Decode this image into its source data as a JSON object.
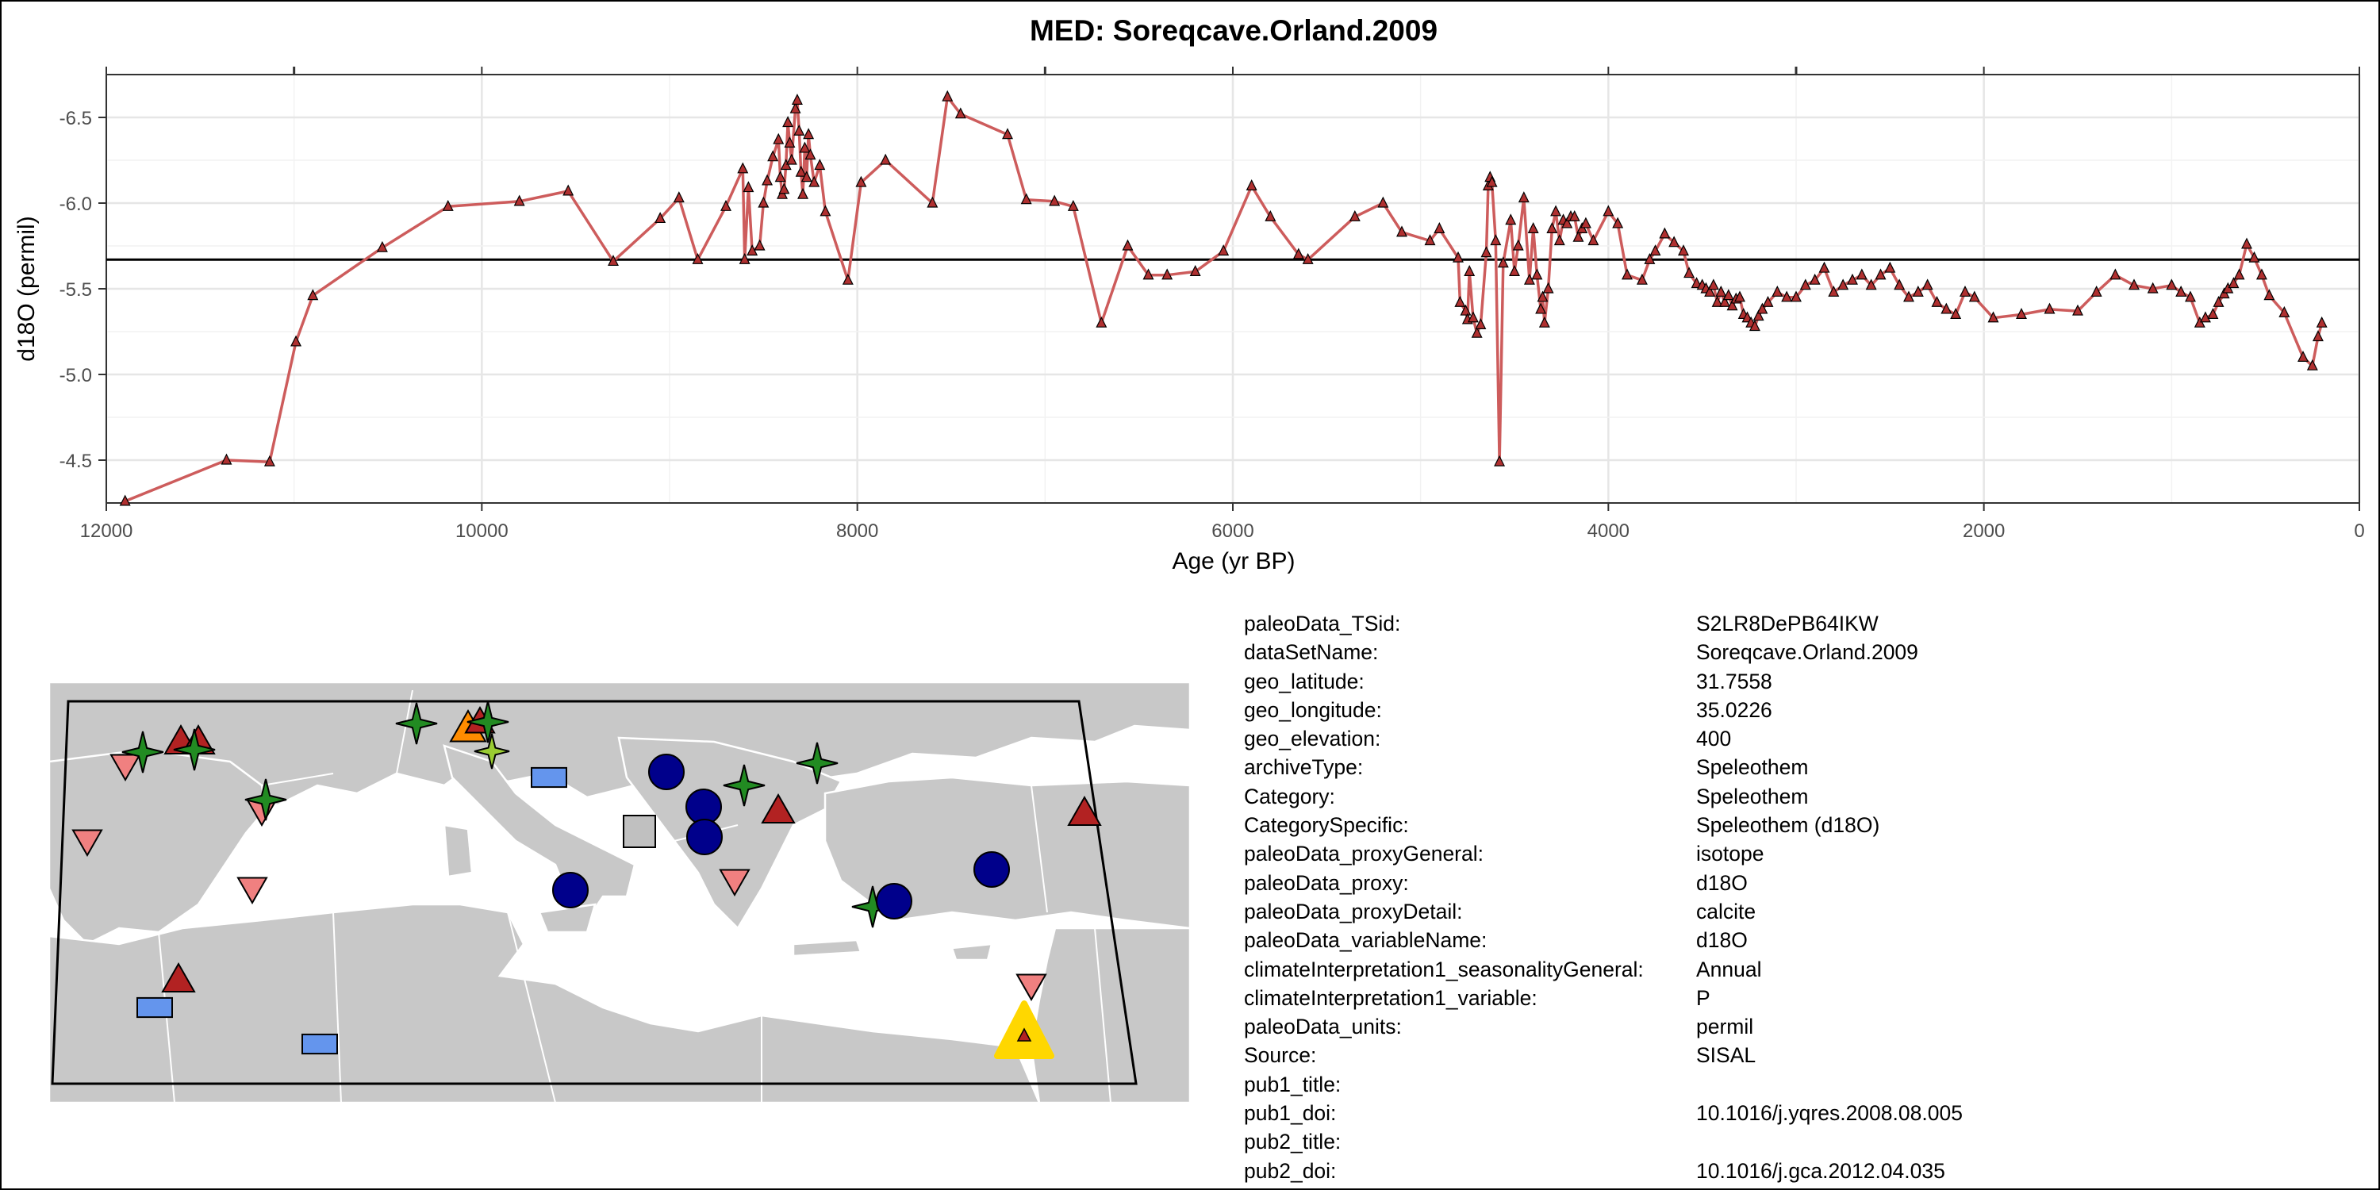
{
  "chart_data": {
    "type": "line",
    "title": "MED: Soreqcave.Orland.2009",
    "xlabel": "Age (yr BP)",
    "ylabel": "d18O (permil)",
    "x_reversed": true,
    "xlim": [
      12000,
      0
    ],
    "ylim_display": [
      -6.75,
      -4.25
    ],
    "y_reversed": true,
    "xticks": [
      12000,
      10000,
      8000,
      6000,
      4000,
      2000,
      0
    ],
    "yticks": [
      -6.5,
      -6.0,
      -5.5,
      -5.0,
      -4.5
    ],
    "xtick_labels": [
      "12000",
      "10000",
      "8000",
      "6000",
      "4000",
      "2000",
      "0"
    ],
    "ytick_labels": [
      "-6.5",
      "-6.0",
      "-5.5",
      "-5.0",
      "-4.5"
    ],
    "reference_line_y": -5.67,
    "line_color": "#cd5c5c",
    "marker_color": "#b03030",
    "grid": true,
    "points": [
      [
        11900,
        -4.26
      ],
      [
        11360,
        -4.5
      ],
      [
        11130,
        -4.49
      ],
      [
        10990,
        -5.19
      ],
      [
        10900,
        -5.46
      ],
      [
        10530,
        -5.74
      ],
      [
        10180,
        -5.98
      ],
      [
        9800,
        -6.01
      ],
      [
        9540,
        -6.07
      ],
      [
        9300,
        -5.66
      ],
      [
        9050,
        -5.91
      ],
      [
        8950,
        -6.03
      ],
      [
        8850,
        -5.67
      ],
      [
        8700,
        -5.98
      ],
      [
        8610,
        -6.2
      ],
      [
        8600,
        -5.67
      ],
      [
        8580,
        -6.09
      ],
      [
        8560,
        -5.72
      ],
      [
        8520,
        -5.75
      ],
      [
        8500,
        -6.0
      ],
      [
        8480,
        -6.13
      ],
      [
        8450,
        -6.27
      ],
      [
        8420,
        -6.37
      ],
      [
        8410,
        -6.15
      ],
      [
        8400,
        -6.05
      ],
      [
        8390,
        -6.08
      ],
      [
        8380,
        -6.22
      ],
      [
        8370,
        -6.47
      ],
      [
        8360,
        -6.35
      ],
      [
        8350,
        -6.25
      ],
      [
        8330,
        -6.55
      ],
      [
        8320,
        -6.6
      ],
      [
        8310,
        -6.42
      ],
      [
        8300,
        -6.18
      ],
      [
        8290,
        -6.05
      ],
      [
        8280,
        -6.32
      ],
      [
        8270,
        -6.15
      ],
      [
        8260,
        -6.4
      ],
      [
        8250,
        -6.28
      ],
      [
        8230,
        -6.12
      ],
      [
        8200,
        -6.22
      ],
      [
        8170,
        -5.95
      ],
      [
        8050,
        -5.55
      ],
      [
        7980,
        -6.12
      ],
      [
        7850,
        -6.25
      ],
      [
        7600,
        -6.0
      ],
      [
        7520,
        -6.62
      ],
      [
        7450,
        -6.52
      ],
      [
        7200,
        -6.4
      ],
      [
        7100,
        -6.02
      ],
      [
        6950,
        -6.01
      ],
      [
        6850,
        -5.98
      ],
      [
        6700,
        -5.3
      ],
      [
        6560,
        -5.75
      ],
      [
        6450,
        -5.58
      ],
      [
        6350,
        -5.58
      ],
      [
        6200,
        -5.6
      ],
      [
        6050,
        -5.72
      ],
      [
        5900,
        -6.1
      ],
      [
        5800,
        -5.92
      ],
      [
        5650,
        -5.7
      ],
      [
        5600,
        -5.67
      ],
      [
        5350,
        -5.92
      ],
      [
        5200,
        -6.0
      ],
      [
        5100,
        -5.83
      ],
      [
        4950,
        -5.78
      ],
      [
        4900,
        -5.85
      ],
      [
        4800,
        -5.68
      ],
      [
        4790,
        -5.42
      ],
      [
        4760,
        -5.37
      ],
      [
        4750,
        -5.32
      ],
      [
        4740,
        -5.6
      ],
      [
        4720,
        -5.33
      ],
      [
        4700,
        -5.24
      ],
      [
        4680,
        -5.29
      ],
      [
        4650,
        -5.71
      ],
      [
        4640,
        -6.1
      ],
      [
        4630,
        -6.15
      ],
      [
        4620,
        -6.12
      ],
      [
        4600,
        -5.78
      ],
      [
        4580,
        -4.49
      ],
      [
        4560,
        -5.65
      ],
      [
        4520,
        -5.9
      ],
      [
        4500,
        -5.6
      ],
      [
        4480,
        -5.75
      ],
      [
        4450,
        -6.03
      ],
      [
        4420,
        -5.55
      ],
      [
        4400,
        -5.85
      ],
      [
        4380,
        -5.58
      ],
      [
        4360,
        -5.38
      ],
      [
        4350,
        -5.45
      ],
      [
        4340,
        -5.3
      ],
      [
        4320,
        -5.5
      ],
      [
        4300,
        -5.85
      ],
      [
        4280,
        -5.95
      ],
      [
        4260,
        -5.78
      ],
      [
        4240,
        -5.9
      ],
      [
        4220,
        -5.88
      ],
      [
        4200,
        -5.92
      ],
      [
        4180,
        -5.92
      ],
      [
        4160,
        -5.8
      ],
      [
        4140,
        -5.85
      ],
      [
        4120,
        -5.88
      ],
      [
        4080,
        -5.78
      ],
      [
        4000,
        -5.95
      ],
      [
        3950,
        -5.88
      ],
      [
        3900,
        -5.58
      ],
      [
        3820,
        -5.55
      ],
      [
        3780,
        -5.67
      ],
      [
        3750,
        -5.72
      ],
      [
        3700,
        -5.82
      ],
      [
        3650,
        -5.77
      ],
      [
        3600,
        -5.72
      ],
      [
        3570,
        -5.59
      ],
      [
        3530,
        -5.53
      ],
      [
        3500,
        -5.52
      ],
      [
        3480,
        -5.5
      ],
      [
        3460,
        -5.48
      ],
      [
        3440,
        -5.52
      ],
      [
        3420,
        -5.42
      ],
      [
        3400,
        -5.48
      ],
      [
        3380,
        -5.42
      ],
      [
        3360,
        -5.46
      ],
      [
        3340,
        -5.4
      ],
      [
        3320,
        -5.44
      ],
      [
        3300,
        -5.45
      ],
      [
        3280,
        -5.35
      ],
      [
        3260,
        -5.33
      ],
      [
        3240,
        -5.3
      ],
      [
        3220,
        -5.28
      ],
      [
        3200,
        -5.34
      ],
      [
        3180,
        -5.38
      ],
      [
        3150,
        -5.42
      ],
      [
        3100,
        -5.48
      ],
      [
        3050,
        -5.45
      ],
      [
        3000,
        -5.45
      ],
      [
        2950,
        -5.52
      ],
      [
        2900,
        -5.55
      ],
      [
        2850,
        -5.62
      ],
      [
        2800,
        -5.48
      ],
      [
        2750,
        -5.52
      ],
      [
        2700,
        -5.55
      ],
      [
        2650,
        -5.58
      ],
      [
        2600,
        -5.52
      ],
      [
        2550,
        -5.58
      ],
      [
        2500,
        -5.62
      ],
      [
        2450,
        -5.52
      ],
      [
        2400,
        -5.45
      ],
      [
        2350,
        -5.48
      ],
      [
        2300,
        -5.52
      ],
      [
        2250,
        -5.42
      ],
      [
        2200,
        -5.38
      ],
      [
        2150,
        -5.35
      ],
      [
        2100,
        -5.48
      ],
      [
        2050,
        -5.45
      ],
      [
        1950,
        -5.33
      ],
      [
        1800,
        -5.35
      ],
      [
        1650,
        -5.38
      ],
      [
        1500,
        -5.37
      ],
      [
        1400,
        -5.48
      ],
      [
        1300,
        -5.58
      ],
      [
        1200,
        -5.52
      ],
      [
        1100,
        -5.5
      ],
      [
        1000,
        -5.52
      ],
      [
        950,
        -5.48
      ],
      [
        900,
        -5.45
      ],
      [
        850,
        -5.3
      ],
      [
        820,
        -5.33
      ],
      [
        780,
        -5.35
      ],
      [
        750,
        -5.42
      ],
      [
        720,
        -5.47
      ],
      [
        700,
        -5.5
      ],
      [
        670,
        -5.53
      ],
      [
        640,
        -5.58
      ],
      [
        600,
        -5.76
      ],
      [
        560,
        -5.68
      ],
      [
        520,
        -5.58
      ],
      [
        480,
        -5.46
      ],
      [
        400,
        -5.36
      ],
      [
        300,
        -5.1
      ],
      [
        250,
        -5.05
      ],
      [
        220,
        -5.22
      ],
      [
        200,
        -5.3
      ]
    ]
  },
  "map": {
    "sites": [
      {
        "shape": "star",
        "color": "#228b22"
      },
      {
        "shape": "triangle-up",
        "color": "#b22222"
      },
      {
        "shape": "triangle-down",
        "color": "#f08080"
      },
      {
        "shape": "circle",
        "color": "#00008b"
      },
      {
        "shape": "rect",
        "color": "#6495ed"
      },
      {
        "shape": "square",
        "color": "#c0c0c0"
      },
      {
        "shape": "triangle-up",
        "color": "#ff8c00"
      },
      {
        "shape": "star",
        "color": "#9acd32"
      },
      {
        "shape": "triangle-up",
        "color": "#ffd700"
      }
    ],
    "highlight_color": "#ffd700"
  },
  "metadata": [
    {
      "key": "paleoData_TSid:",
      "value": "S2LR8DePB64IKW"
    },
    {
      "key": "dataSetName:",
      "value": "Soreqcave.Orland.2009"
    },
    {
      "key": "geo_latitude:",
      "value": "31.7558"
    },
    {
      "key": "geo_longitude:",
      "value": "35.0226"
    },
    {
      "key": "geo_elevation:",
      "value": "400"
    },
    {
      "key": "archiveType:",
      "value": "Speleothem"
    },
    {
      "key": "Category:",
      "value": "Speleothem"
    },
    {
      "key": "CategorySpecific:",
      "value": "Speleothem (d18O)"
    },
    {
      "key": "paleoData_proxyGeneral:",
      "value": "isotope"
    },
    {
      "key": "paleoData_proxy:",
      "value": "d18O"
    },
    {
      "key": "paleoData_proxyDetail:",
      "value": "calcite"
    },
    {
      "key": "paleoData_variableName:",
      "value": "d18O"
    },
    {
      "key": "climateInterpretation1_seasonalityGeneral:",
      "value": "Annual"
    },
    {
      "key": "climateInterpretation1_variable:",
      "value": "P"
    },
    {
      "key": "paleoData_units:",
      "value": "permil"
    },
    {
      "key": "Source:",
      "value": "SISAL"
    },
    {
      "key": "pub1_title:",
      "value": ""
    },
    {
      "key": "pub1_doi:",
      "value": "10.1016/j.yqres.2008.08.005"
    },
    {
      "key": "pub2_title:",
      "value": ""
    },
    {
      "key": "pub2_doi:",
      "value": "10.1016/j.gca.2012.04.035"
    }
  ]
}
